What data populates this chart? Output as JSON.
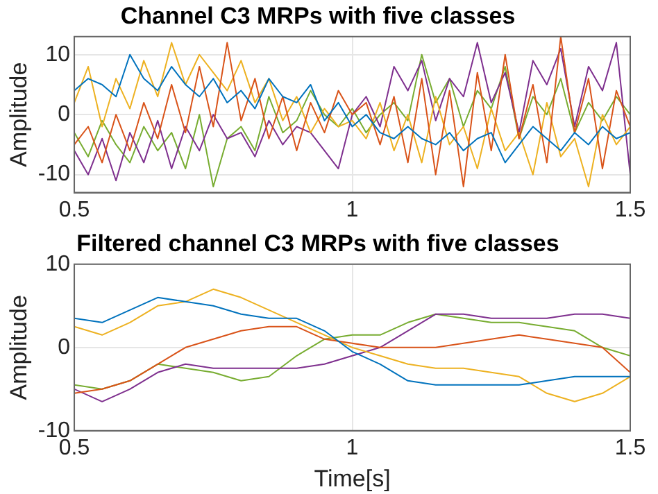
{
  "chart_data": [
    {
      "type": "line",
      "title": "Channel C3 MRPs with five classes",
      "ylabel": "Amplitude",
      "x": [
        0.5,
        0.525,
        0.55,
        0.575,
        0.6,
        0.625,
        0.65,
        0.675,
        0.7,
        0.725,
        0.75,
        0.775,
        0.8,
        0.825,
        0.85,
        0.875,
        0.9,
        0.925,
        0.95,
        0.975,
        1.0,
        1.025,
        1.05,
        1.075,
        1.1,
        1.125,
        1.15,
        1.175,
        1.2,
        1.225,
        1.25,
        1.275,
        1.3,
        1.325,
        1.35,
        1.375,
        1.4,
        1.425,
        1.45,
        1.475,
        1.5
      ],
      "series": [
        {
          "color": "#0072bd",
          "values": [
            4,
            6,
            5,
            3,
            10,
            6,
            4,
            8,
            5,
            3,
            6,
            2,
            4,
            1,
            6,
            3,
            2,
            5,
            -1,
            2,
            -2,
            0,
            -3,
            -4,
            -2,
            -4,
            -5,
            -3,
            -6,
            -4,
            -3,
            -8,
            -5,
            -2,
            -4,
            -6,
            -3,
            -5,
            -2,
            -4,
            -3
          ]
        },
        {
          "color": "#d95319",
          "values": [
            -5,
            -2,
            -8,
            0,
            -6,
            2,
            -4,
            5,
            -3,
            8,
            -2,
            12,
            -1,
            6,
            -4,
            3,
            -6,
            2,
            -3,
            4,
            0,
            2,
            -5,
            3,
            -8,
            6,
            -10,
            4,
            -12,
            7,
            -6,
            10,
            -4,
            5,
            -8,
            13,
            -3,
            6,
            -9,
            4,
            -2
          ]
        },
        {
          "color": "#edb120",
          "values": [
            2,
            8,
            -2,
            6,
            1,
            9,
            3,
            12,
            5,
            10,
            7,
            4,
            9,
            2,
            6,
            -1,
            3,
            -3,
            1,
            -2,
            -1,
            -4,
            2,
            -6,
            0,
            -8,
            3,
            -5,
            -2,
            -9,
            1,
            -6,
            -3,
            -10,
            2,
            -7,
            -4,
            -12,
            0,
            -5,
            -2
          ]
        },
        {
          "color": "#7e2f8e",
          "values": [
            -6,
            -10,
            -4,
            -11,
            -3,
            -8,
            -1,
            -9,
            -2,
            -6,
            0,
            -4,
            -3,
            -7,
            -1,
            -5,
            -2,
            -3,
            -6,
            -9,
            0,
            3,
            -2,
            8,
            4,
            9,
            -1,
            6,
            3,
            12,
            2,
            7,
            -3,
            9,
            5,
            11,
            -2,
            8,
            4,
            12,
            -10
          ]
        },
        {
          "color": "#77ac30",
          "values": [
            -3,
            -7,
            -1,
            -5,
            -8,
            -2,
            -6,
            -3,
            -9,
            0,
            -12,
            -4,
            -2,
            -6,
            3,
            -3,
            -1,
            4,
            0,
            -2,
            1,
            -3,
            0,
            2,
            -1,
            10,
            2,
            6,
            -2,
            4,
            1,
            8,
            -4,
            3,
            0,
            6,
            -3,
            2,
            -1,
            3,
            0
          ]
        }
      ],
      "xlim": [
        0.5,
        1.5
      ],
      "xticks": [
        0.5,
        1,
        1.5
      ],
      "ylim": [
        -13,
        13
      ],
      "yticks": [
        -10,
        0,
        10
      ],
      "grid": true,
      "legend": false,
      "marker": "none",
      "line_style": "solid"
    },
    {
      "type": "line",
      "title": "Filtered channel C3 MRPs with five classes",
      "xlabel": "Time[s]",
      "ylabel": "Amplitude",
      "x": [
        0.5,
        0.55,
        0.6,
        0.65,
        0.7,
        0.75,
        0.8,
        0.85,
        0.9,
        0.95,
        1.0,
        1.05,
        1.1,
        1.15,
        1.2,
        1.25,
        1.3,
        1.35,
        1.4,
        1.45,
        1.5
      ],
      "series": [
        {
          "color": "#0072bd",
          "values": [
            3.5,
            3,
            4.5,
            6,
            5.5,
            5,
            4,
            3.5,
            3.5,
            2,
            -0.5,
            -2,
            -4,
            -4.5,
            -4.5,
            -4.5,
            -4.5,
            -4,
            -3.5,
            -3.5,
            -3.5
          ]
        },
        {
          "color": "#d95319",
          "values": [
            -5.5,
            -5,
            -4,
            -2,
            0,
            1,
            2,
            2.5,
            2.5,
            1,
            0.5,
            0,
            0,
            0,
            0.5,
            1,
            1.5,
            1,
            0.5,
            0,
            -3
          ]
        },
        {
          "color": "#edb120",
          "values": [
            2.5,
            1.5,
            3,
            5,
            5.5,
            7,
            6,
            4.5,
            3,
            1.5,
            0,
            -1,
            -2,
            -2.5,
            -2.5,
            -3,
            -3.5,
            -5.5,
            -6.5,
            -5.5,
            -3.5
          ]
        },
        {
          "color": "#7e2f8e",
          "values": [
            -5,
            -6.5,
            -5,
            -3,
            -2,
            -2.5,
            -2.5,
            -2.5,
            -2.5,
            -2,
            -1,
            0,
            2,
            4,
            4,
            3.5,
            3.5,
            3.5,
            4,
            4,
            3.5
          ]
        },
        {
          "color": "#77ac30",
          "values": [
            -4.5,
            -5,
            -4,
            -2,
            -2.5,
            -3,
            -4,
            -3.5,
            -1,
            1,
            1.5,
            1.5,
            3,
            4,
            3.5,
            3,
            3,
            2.5,
            2,
            0,
            -1
          ]
        }
      ],
      "xlim": [
        0.5,
        1.5
      ],
      "xticks": [
        0.5,
        1,
        1.5
      ],
      "ylim": [
        -10,
        10
      ],
      "yticks": [
        -10,
        0,
        10
      ],
      "grid": true,
      "legend": false,
      "marker": "none",
      "line_style": "solid"
    }
  ]
}
